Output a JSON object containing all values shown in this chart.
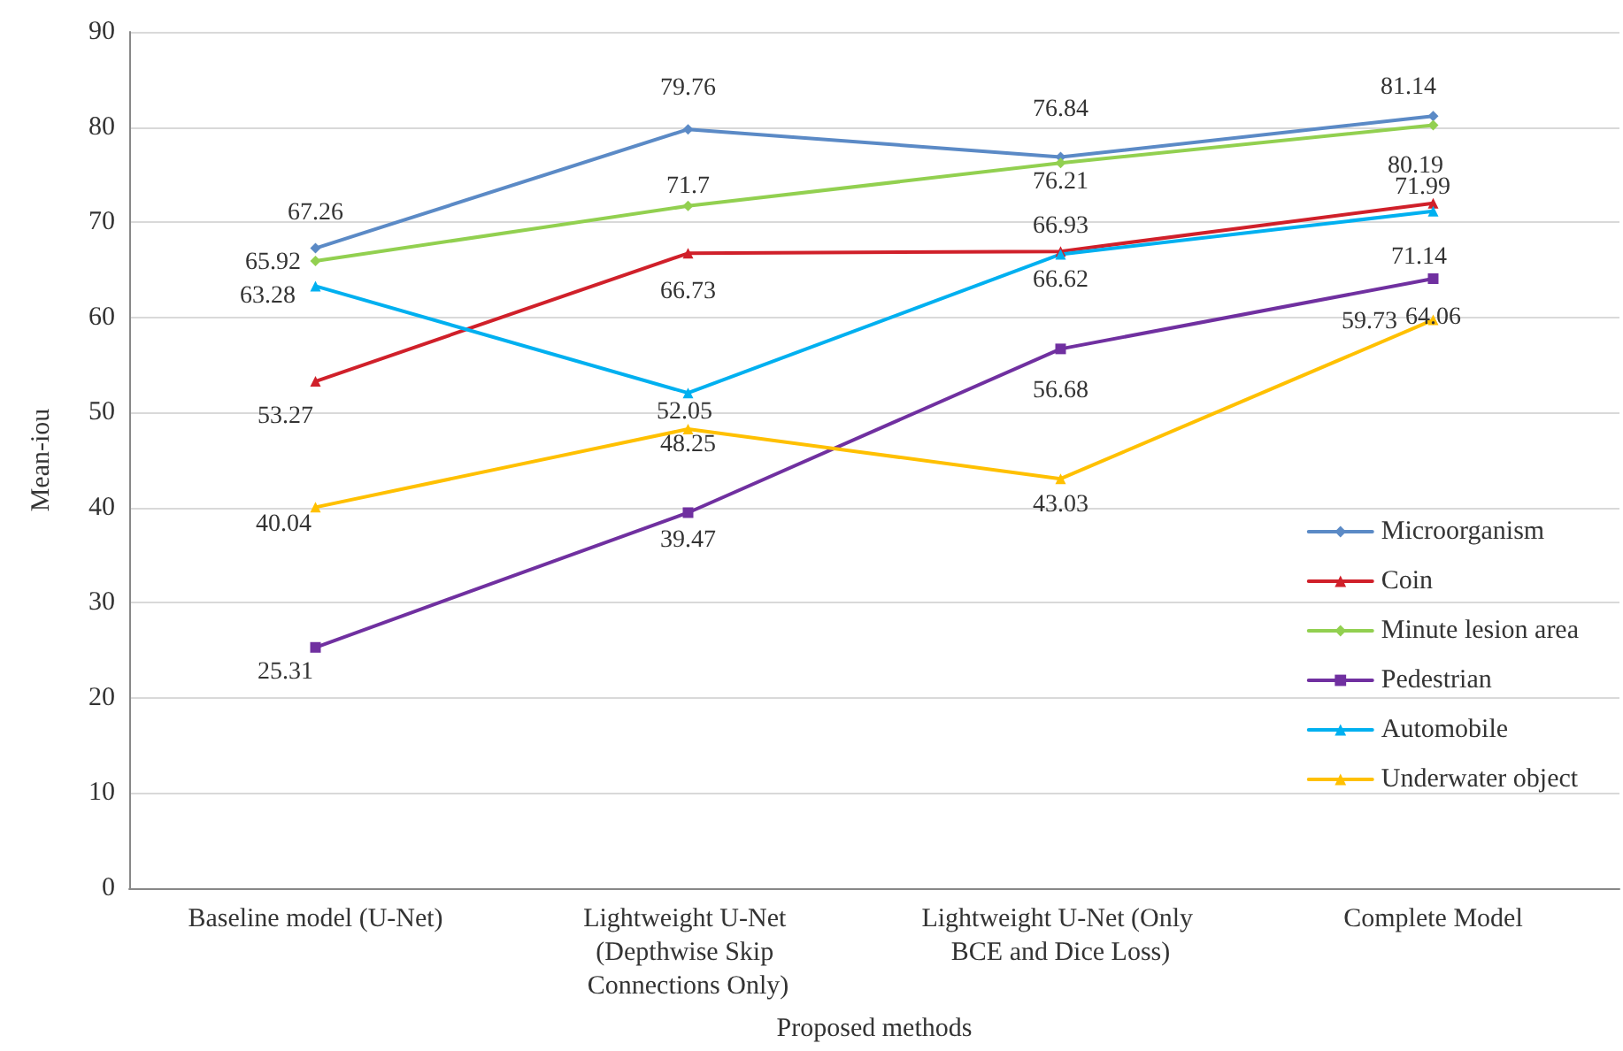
{
  "chart_data": {
    "type": "line",
    "xlabel": "Proposed methods",
    "ylabel": "Mean-iou",
    "categories": [
      "Baseline model (U-Net)",
      "Lightweight U-Net (Depthwise Skip Connections Only)",
      "Lightweight U-Net (Only BCE and Dice Loss)",
      "Complete Model"
    ],
    "series": [
      {
        "name": "Microorganism",
        "color": "#5b8ac6",
        "marker": "diamond",
        "values": [
          67.26,
          79.76,
          76.84,
          81.14
        ]
      },
      {
        "name": "Coin",
        "color": "#d0202a",
        "marker": "triangle",
        "values": [
          53.27,
          66.73,
          66.93,
          71.99
        ]
      },
      {
        "name": "Minute lesion area",
        "color": "#92d050",
        "marker": "diamond",
        "values": [
          65.92,
          71.7,
          76.21,
          80.19
        ]
      },
      {
        "name": "Pedestrian",
        "color": "#7030a0",
        "marker": "square",
        "values": [
          25.31,
          39.47,
          56.68,
          64.06
        ]
      },
      {
        "name": "Automobile",
        "color": "#00b0f0",
        "marker": "triangle",
        "values": [
          63.28,
          52.05,
          66.62,
          71.14
        ]
      },
      {
        "name": "Underwater object",
        "color": "#ffc000",
        "marker": "triangle",
        "values": [
          40.04,
          48.25,
          43.03,
          59.73
        ]
      }
    ],
    "ylim": [
      0,
      90
    ],
    "yticks": [
      0,
      10,
      20,
      30,
      40,
      50,
      60,
      70,
      80,
      90
    ],
    "grid": "y",
    "legend": "right",
    "data_labels": true
  }
}
